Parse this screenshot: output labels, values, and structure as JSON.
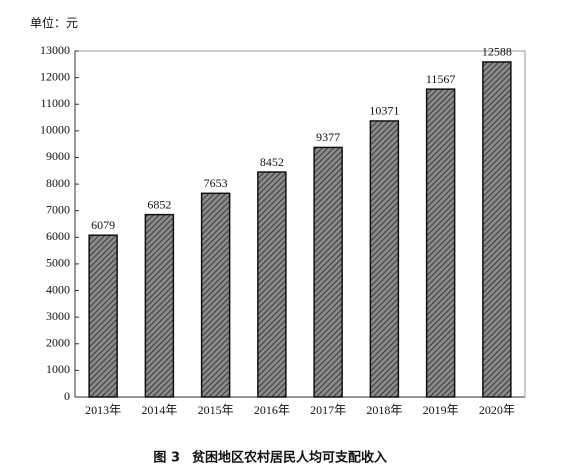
{
  "chart_data": {
    "type": "bar",
    "unit_label": "单位：元",
    "figure_label": "图 3",
    "title": "贫困地区农村居民人均可支配收入",
    "categories": [
      "2013年",
      "2014年",
      "2015年",
      "2016年",
      "2017年",
      "2018年",
      "2019年",
      "2020年"
    ],
    "values": [
      6079,
      6852,
      7653,
      8452,
      9377,
      10371,
      11567,
      12588
    ],
    "color": "#6e6e6e",
    "ylim": [
      0,
      13000
    ],
    "yticks": [
      0,
      1000,
      2000,
      3000,
      4000,
      5000,
      6000,
      7000,
      8000,
      9000,
      10000,
      11000,
      12000,
      13000
    ],
    "grid": false
  }
}
